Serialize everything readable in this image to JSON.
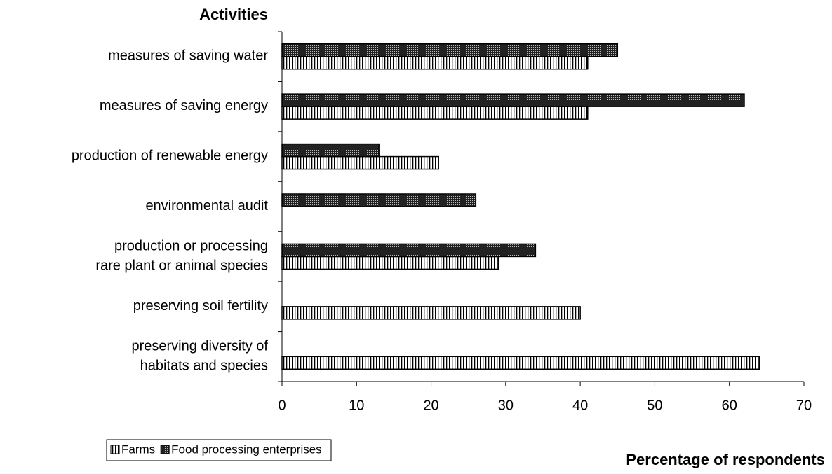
{
  "chart_data": {
    "type": "bar",
    "orientation": "horizontal",
    "y_axis_title": "Activities",
    "x_axis_title": "Percentage of respondents",
    "categories": [
      "measures of saving water",
      "measures of saving energy",
      "production of renewable energy",
      "environmental audit",
      "production or processing\nrare plant or animal species",
      "preserving soil fertility",
      "preserving diversity of\nhabitats and species"
    ],
    "series": [
      {
        "name": "Farms",
        "color": "#000000",
        "values": [
          41,
          41,
          21,
          null,
          29,
          40,
          64
        ]
      },
      {
        "name": "Food processing enterprises",
        "color": "#000000",
        "values": [
          45,
          62,
          13,
          26,
          34,
          null,
          null
        ]
      }
    ],
    "xlim": [
      0,
      70
    ],
    "xticks": [
      0,
      10,
      20,
      30,
      40,
      50,
      60,
      70
    ],
    "legend": "bottom-left"
  }
}
